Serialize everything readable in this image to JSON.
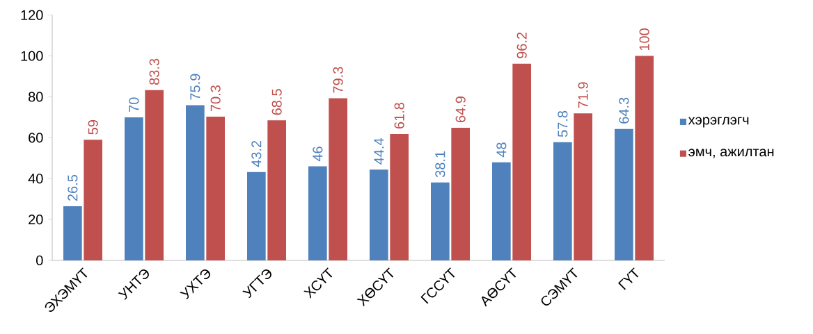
{
  "chart_data": {
    "type": "bar",
    "categories": [
      "ЭХЭМҮТ",
      "УНТЭ",
      "УХТЭ",
      "УГТЭ",
      "ХСҮТ",
      "ХӨСҮТ",
      "ГССҮТ",
      "АӨСҮТ",
      "СЭМҮТ",
      "ГҮТ"
    ],
    "series": [
      {
        "name": "хэрэглэгч",
        "color": "#4f81bd",
        "values": [
          26.5,
          70,
          75.9,
          43.2,
          46,
          44.4,
          38.1,
          48,
          57.8,
          64.3
        ]
      },
      {
        "name": "эмч, ажилтан",
        "color": "#c0504d",
        "values": [
          59,
          83.3,
          70.3,
          68.5,
          79.3,
          61.8,
          64.9,
          96.2,
          71.9,
          100
        ]
      }
    ],
    "ylim": [
      0,
      120
    ],
    "yticks": [
      0,
      20,
      40,
      60,
      80,
      100,
      120
    ],
    "grid": false,
    "legend": "right",
    "data_labels": true
  }
}
